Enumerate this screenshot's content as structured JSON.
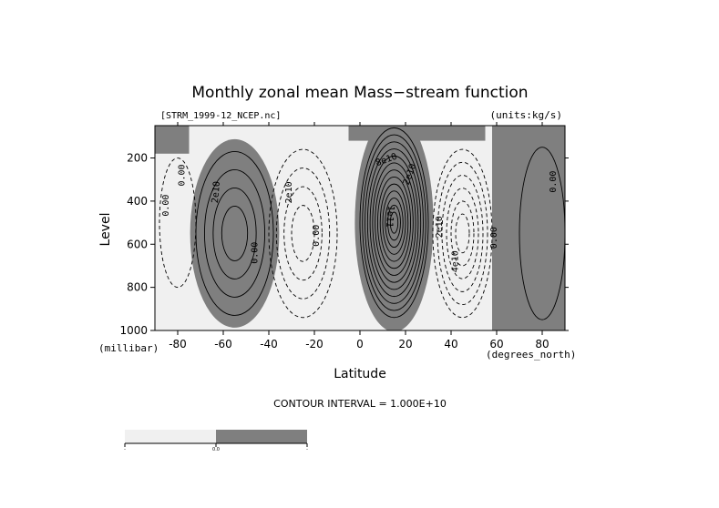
{
  "chart_data": {
    "type": "contour",
    "title": "Monthly zonal mean Mass−stream function",
    "file_label": "[STRM_1999-12_NCEP.nc]",
    "units_label": "(units:kg/s)",
    "xlabel": "Latitude",
    "x_unit_label": "(degrees_north)",
    "ylabel": "Level",
    "y_unit_label": "(millibar)",
    "xlim": [
      -90,
      90
    ],
    "ylim": [
      1000,
      50
    ],
    "x_ticks": [
      -80,
      -60,
      -40,
      -20,
      0,
      20,
      40,
      60,
      80
    ],
    "y_ticks": [
      200,
      400,
      600,
      800,
      1000
    ],
    "contour_interval_label": "CONTOUR INTERVAL = 1.000E+10",
    "contour_interval": 10000000000.0,
    "positive_fill": "#7f7f7f",
    "negative_fill": "#f0f0f0",
    "cells": [
      {
        "sign": "negative",
        "center_lat": -80,
        "center_level": 500,
        "lat_half_width": 8,
        "level_half_height": 300,
        "peak": -10000000000.0
      },
      {
        "sign": "positive",
        "center_lat": -55,
        "center_level": 550,
        "lat_half_width": 17,
        "level_half_height": 380,
        "peak": 40000000000.0
      },
      {
        "sign": "negative",
        "center_lat": -25,
        "center_level": 550,
        "lat_half_width": 15,
        "level_half_height": 390,
        "peak": -40000000000.0
      },
      {
        "sign": "positive",
        "center_lat": 15,
        "center_level": 500,
        "lat_half_width": 15,
        "level_half_height": 440,
        "peak": 130000000000.0
      },
      {
        "sign": "negative",
        "center_lat": 45,
        "center_level": 550,
        "lat_half_width": 13,
        "level_half_height": 390,
        "peak": -60000000000.0
      },
      {
        "sign": "positive",
        "center_lat": 80,
        "center_level": 550,
        "lat_half_width": 10,
        "level_half_height": 400,
        "peak": 10000000000.0
      }
    ],
    "contour_labels": [
      "0.00",
      "0.00",
      "2e10",
      "2e10",
      "0.00",
      "0.00",
      "8e10",
      "2e10",
      "1e11",
      "2e10",
      "4e10",
      "0.00",
      "0.00"
    ],
    "colorbar": {
      "tick_labels": [
        "-",
        "0.0",
        "-"
      ]
    }
  }
}
